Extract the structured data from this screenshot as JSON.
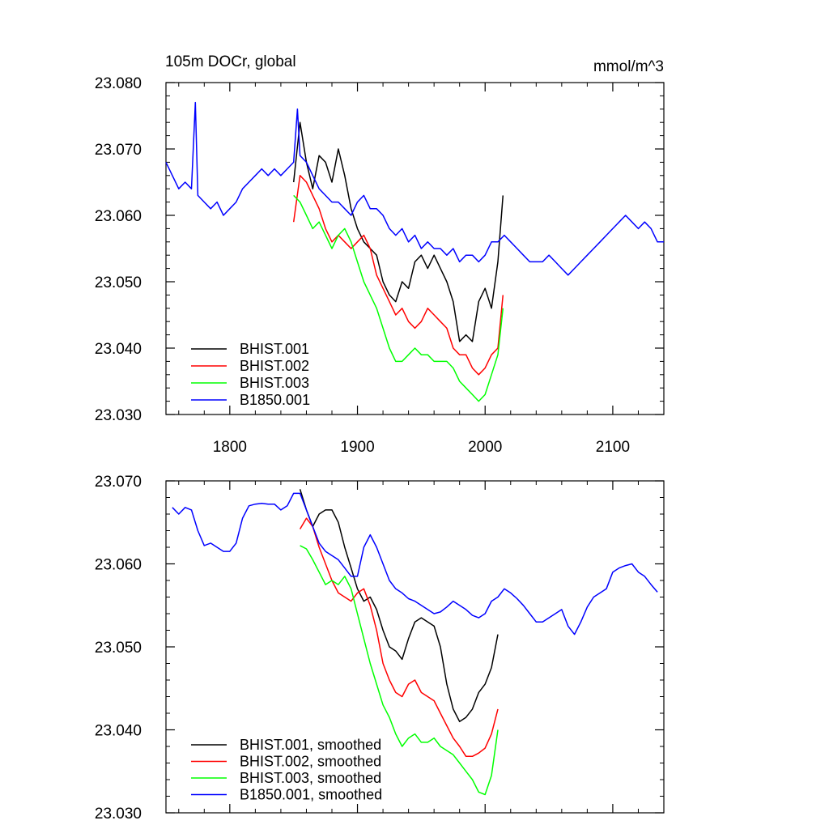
{
  "chart_data": [
    {
      "type": "line",
      "title": "105m DOCr, global",
      "units": "mmol/m^3",
      "xlim": [
        1750,
        2140
      ],
      "ylim": [
        23.03,
        23.08
      ],
      "xticks": [
        1800,
        1900,
        2000,
        2100
      ],
      "xtick_labels": [
        "1800",
        "1900",
        "2000",
        "2100"
      ],
      "yticks": [
        23.03,
        23.04,
        23.05,
        23.06,
        23.07,
        23.08
      ],
      "ytick_labels": [
        "23.030",
        "23.040",
        "23.050",
        "23.060",
        "23.070",
        "23.080"
      ],
      "legend_position": "bottom-left",
      "series": [
        {
          "name": "BHIST.001",
          "color": "#000000",
          "x": [
            1850,
            1855,
            1860,
            1865,
            1870,
            1875,
            1880,
            1885,
            1890,
            1895,
            1900,
            1905,
            1910,
            1915,
            1920,
            1925,
            1930,
            1935,
            1940,
            1945,
            1950,
            1955,
            1960,
            1965,
            1970,
            1975,
            1980,
            1985,
            1990,
            1995,
            2000,
            2005,
            2010,
            2014
          ],
          "y": [
            23.065,
            23.074,
            23.068,
            23.064,
            23.069,
            23.068,
            23.065,
            23.07,
            23.066,
            23.061,
            23.058,
            23.056,
            23.055,
            23.054,
            23.05,
            23.048,
            23.047,
            23.05,
            23.049,
            23.053,
            23.054,
            23.052,
            23.054,
            23.052,
            23.05,
            23.047,
            23.041,
            23.042,
            23.041,
            23.047,
            23.049,
            23.046,
            23.053,
            23.063
          ]
        },
        {
          "name": "BHIST.002",
          "color": "#ff0000",
          "x": [
            1850,
            1855,
            1860,
            1865,
            1870,
            1875,
            1880,
            1885,
            1890,
            1895,
            1900,
            1905,
            1910,
            1915,
            1920,
            1925,
            1930,
            1935,
            1940,
            1945,
            1950,
            1955,
            1960,
            1965,
            1970,
            1975,
            1980,
            1985,
            1990,
            1995,
            2000,
            2005,
            2010,
            2014
          ],
          "y": [
            23.059,
            23.066,
            23.065,
            23.063,
            23.061,
            23.058,
            23.056,
            23.057,
            23.056,
            23.055,
            23.056,
            23.057,
            23.055,
            23.051,
            23.049,
            23.047,
            23.045,
            23.046,
            23.044,
            23.043,
            23.044,
            23.046,
            23.045,
            23.044,
            23.043,
            23.04,
            23.039,
            23.039,
            23.037,
            23.036,
            23.037,
            23.039,
            23.04,
            23.048
          ]
        },
        {
          "name": "BHIST.003",
          "color": "#00ff00",
          "x": [
            1850,
            1855,
            1860,
            1865,
            1870,
            1875,
            1880,
            1885,
            1890,
            1895,
            1900,
            1905,
            1910,
            1915,
            1920,
            1925,
            1930,
            1935,
            1940,
            1945,
            1950,
            1955,
            1960,
            1965,
            1970,
            1975,
            1980,
            1985,
            1990,
            1995,
            2000,
            2005,
            2010,
            2014
          ],
          "y": [
            23.063,
            23.062,
            23.06,
            23.058,
            23.059,
            23.057,
            23.055,
            23.057,
            23.058,
            23.056,
            23.053,
            23.05,
            23.048,
            23.046,
            23.043,
            23.04,
            23.038,
            23.038,
            23.039,
            23.04,
            23.039,
            23.039,
            23.038,
            23.038,
            23.038,
            23.037,
            23.035,
            23.034,
            23.033,
            23.032,
            23.033,
            23.036,
            23.039,
            23.046
          ]
        },
        {
          "name": "B1850.001",
          "color": "#0000ff",
          "x": [
            1750,
            1755,
            1760,
            1765,
            1770,
            1773,
            1775,
            1780,
            1785,
            1790,
            1795,
            1800,
            1805,
            1810,
            1815,
            1820,
            1825,
            1830,
            1835,
            1840,
            1845,
            1850,
            1853,
            1855,
            1860,
            1865,
            1870,
            1875,
            1880,
            1885,
            1890,
            1895,
            1900,
            1905,
            1910,
            1915,
            1920,
            1925,
            1930,
            1935,
            1940,
            1945,
            1950,
            1955,
            1960,
            1965,
            1970,
            1975,
            1980,
            1985,
            1990,
            1995,
            2000,
            2005,
            2010,
            2015,
            2020,
            2025,
            2030,
            2035,
            2040,
            2045,
            2050,
            2055,
            2060,
            2065,
            2070,
            2075,
            2080,
            2085,
            2090,
            2095,
            2100,
            2105,
            2110,
            2115,
            2120,
            2125,
            2130,
            2135,
            2140
          ],
          "y": [
            23.068,
            23.066,
            23.064,
            23.065,
            23.064,
            23.077,
            23.063,
            23.062,
            23.061,
            23.062,
            23.06,
            23.061,
            23.062,
            23.064,
            23.065,
            23.066,
            23.067,
            23.066,
            23.067,
            23.066,
            23.067,
            23.068,
            23.076,
            23.069,
            23.068,
            23.066,
            23.064,
            23.063,
            23.062,
            23.062,
            23.061,
            23.06,
            23.062,
            23.063,
            23.061,
            23.061,
            23.06,
            23.058,
            23.057,
            23.058,
            23.056,
            23.057,
            23.055,
            23.056,
            23.055,
            23.055,
            23.054,
            23.055,
            23.053,
            23.054,
            23.054,
            23.053,
            23.054,
            23.056,
            23.056,
            23.057,
            23.056,
            23.055,
            23.054,
            23.053,
            23.053,
            23.053,
            23.054,
            23.053,
            23.052,
            23.051,
            23.052,
            23.053,
            23.054,
            23.055,
            23.056,
            23.057,
            23.058,
            23.059,
            23.06,
            23.059,
            23.058,
            23.059,
            23.058,
            23.056,
            23.056
          ]
        }
      ]
    },
    {
      "type": "line",
      "xlim": [
        1750,
        2140
      ],
      "ylim": [
        23.03,
        23.07
      ],
      "xticks": [
        1800,
        1900,
        2000,
        2100
      ],
      "yticks": [
        23.03,
        23.04,
        23.05,
        23.06,
        23.07
      ],
      "ytick_labels": [
        "23.030",
        "23.040",
        "23.050",
        "23.060",
        "23.070"
      ],
      "legend_position": "bottom-left",
      "series": [
        {
          "name": "BHIST.001, smoothed",
          "color": "#000000",
          "x": [
            1855,
            1860,
            1865,
            1870,
            1875,
            1880,
            1885,
            1890,
            1895,
            1900,
            1905,
            1910,
            1915,
            1920,
            1925,
            1930,
            1935,
            1940,
            1945,
            1950,
            1955,
            1960,
            1965,
            1970,
            1975,
            1980,
            1985,
            1990,
            1995,
            2000,
            2005,
            2010
          ],
          "y": [
            23.069,
            23.0665,
            23.0645,
            23.066,
            23.0665,
            23.0665,
            23.065,
            23.062,
            23.0595,
            23.057,
            23.0555,
            23.056,
            23.0545,
            23.052,
            23.05,
            23.0495,
            23.0485,
            23.051,
            23.053,
            23.0535,
            23.053,
            23.0525,
            23.05,
            23.0455,
            23.0425,
            23.041,
            23.0415,
            23.0425,
            23.0445,
            23.0455,
            23.0475,
            23.0515
          ]
        },
        {
          "name": "BHIST.002, smoothed",
          "color": "#ff0000",
          "x": [
            1855,
            1860,
            1865,
            1870,
            1875,
            1880,
            1885,
            1890,
            1895,
            1900,
            1905,
            1910,
            1915,
            1920,
            1925,
            1930,
            1935,
            1940,
            1945,
            1950,
            1955,
            1960,
            1965,
            1970,
            1975,
            1980,
            1985,
            1990,
            1995,
            2000,
            2005,
            2010
          ],
          "y": [
            23.0642,
            23.0655,
            23.0645,
            23.062,
            23.06,
            23.058,
            23.0565,
            23.056,
            23.0555,
            23.0565,
            23.057,
            23.055,
            23.052,
            23.048,
            23.046,
            23.0445,
            23.044,
            23.0455,
            23.046,
            23.0445,
            23.044,
            23.0435,
            23.042,
            23.0405,
            23.039,
            23.038,
            23.0368,
            23.0368,
            23.0372,
            23.0378,
            23.0395,
            23.0425
          ]
        },
        {
          "name": "BHIST.003, smoothed",
          "color": "#00ff00",
          "x": [
            1855,
            1860,
            1865,
            1870,
            1875,
            1880,
            1885,
            1890,
            1895,
            1900,
            1905,
            1910,
            1915,
            1920,
            1925,
            1930,
            1935,
            1940,
            1945,
            1950,
            1955,
            1960,
            1965,
            1970,
            1975,
            1980,
            1985,
            1990,
            1995,
            2000,
            2005,
            2010
          ],
          "y": [
            23.0622,
            23.0618,
            23.0605,
            23.059,
            23.0575,
            23.058,
            23.0575,
            23.0585,
            23.057,
            23.054,
            23.051,
            23.048,
            23.0455,
            23.043,
            23.0415,
            23.0395,
            23.038,
            23.039,
            23.0395,
            23.0385,
            23.0385,
            23.039,
            23.038,
            23.0375,
            23.037,
            23.036,
            23.035,
            23.034,
            23.0325,
            23.0322,
            23.0345,
            23.04
          ]
        },
        {
          "name": "B1850.001, smoothed",
          "color": "#0000ff",
          "x": [
            1755,
            1760,
            1765,
            1770,
            1775,
            1780,
            1785,
            1790,
            1795,
            1800,
            1805,
            1810,
            1815,
            1820,
            1825,
            1830,
            1835,
            1840,
            1845,
            1850,
            1855,
            1860,
            1865,
            1870,
            1875,
            1880,
            1885,
            1890,
            1895,
            1900,
            1905,
            1910,
            1915,
            1920,
            1925,
            1930,
            1935,
            1940,
            1945,
            1950,
            1955,
            1960,
            1965,
            1970,
            1975,
            1980,
            1985,
            1990,
            1995,
            2000,
            2005,
            2010,
            2015,
            2020,
            2025,
            2030,
            2035,
            2040,
            2045,
            2050,
            2055,
            2060,
            2065,
            2070,
            2075,
            2080,
            2085,
            2090,
            2095,
            2100,
            2105,
            2110,
            2115,
            2120,
            2125,
            2130,
            2135
          ],
          "y": [
            23.0668,
            23.066,
            23.0668,
            23.0665,
            23.064,
            23.0622,
            23.0625,
            23.062,
            23.0615,
            23.0615,
            23.0625,
            23.0655,
            23.067,
            23.0672,
            23.0673,
            23.0672,
            23.0672,
            23.0665,
            23.067,
            23.0685,
            23.0685,
            23.0665,
            23.0645,
            23.0625,
            23.0615,
            23.061,
            23.0605,
            23.0595,
            23.0585,
            23.0585,
            23.062,
            23.0635,
            23.062,
            23.06,
            23.058,
            23.057,
            23.0565,
            23.0558,
            23.0555,
            23.055,
            23.0545,
            23.054,
            23.0542,
            23.0548,
            23.0555,
            23.055,
            23.0545,
            23.0538,
            23.0535,
            23.054,
            23.0555,
            23.056,
            23.057,
            23.0565,
            23.0558,
            23.055,
            23.054,
            23.053,
            23.053,
            23.0535,
            23.054,
            23.0545,
            23.0525,
            23.0515,
            23.053,
            23.0548,
            23.056,
            23.0565,
            23.057,
            23.059,
            23.0595,
            23.0598,
            23.06,
            23.059,
            23.0585,
            23.0575,
            23.0566
          ]
        }
      ]
    }
  ]
}
